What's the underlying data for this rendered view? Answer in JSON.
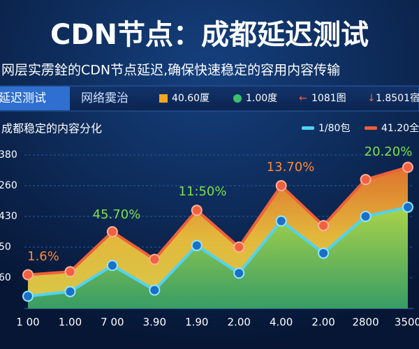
{
  "chart_data": {
    "type": "area",
    "title": "CDN节点：成都延迟测试",
    "subtitle": "网层实雳銓的CDN节点延迟,确保快速稳定的容用内容传输",
    "tabs": [
      "延迟测试",
      "网络霙治"
    ],
    "stats": [
      "40.60厦",
      "1.00度",
      "1081图",
      "1.8501宿"
    ],
    "chart_title": "成都稳定的内容分化",
    "categories": [
      "1 00",
      "1.00",
      "7 00",
      "3.90",
      "1.90",
      "2.00",
      "4.00",
      "2.00",
      "2800",
      "3500"
    ],
    "series": [
      {
        "name": "41.20全",
        "color": "#f0603a",
        "values": [
          1.1,
          1.2,
          2.5,
          1.6,
          3.2,
          2.0,
          4.0,
          2.7,
          4.2,
          4.6
        ]
      },
      {
        "name": "1/80包",
        "color": "#4fd3f5",
        "values": [
          0.4,
          0.55,
          1.4,
          0.6,
          2.05,
          1.15,
          2.85,
          1.8,
          3.0,
          3.3
        ]
      }
    ],
    "annotations": [
      "1.6%",
      "45.70%",
      "11:50%",
      "13.70%",
      "20.20%"
    ],
    "ylim": [
      0,
      5.5
    ],
    "yticks": [
      {
        "value": 1,
        "label": "60"
      },
      {
        "value": 2,
        "label": "50"
      },
      {
        "value": 3,
        "label": "430"
      },
      {
        "value": 4,
        "label": "260"
      },
      {
        "value": 5,
        "label": "380"
      }
    ],
    "grid": true
  }
}
